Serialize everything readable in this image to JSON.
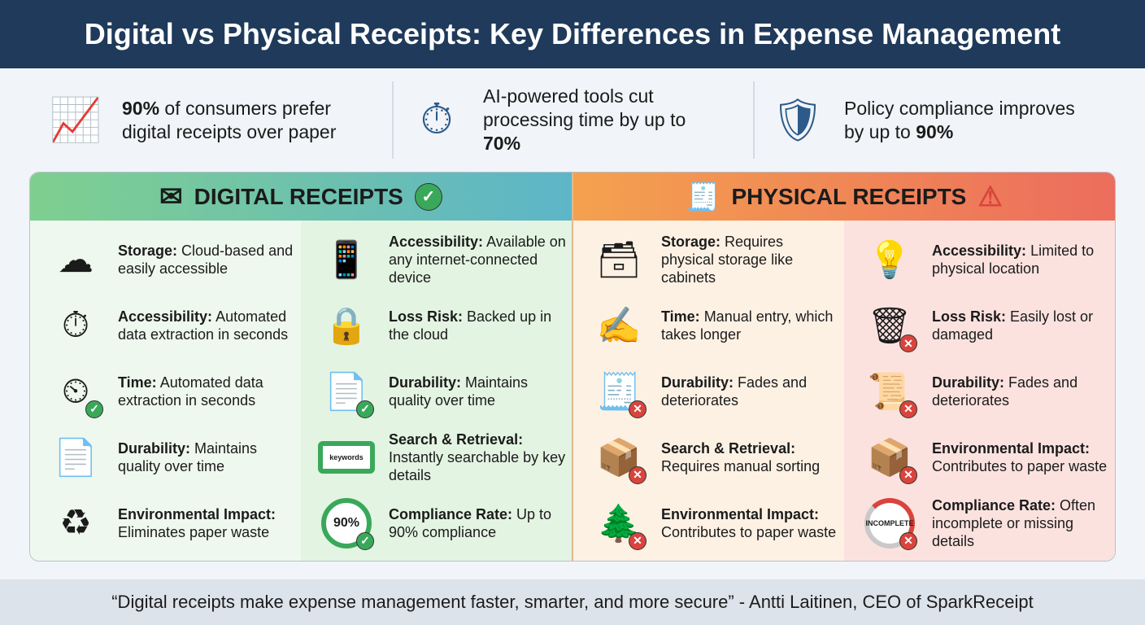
{
  "title": "Digital vs Physical Receipts: Key Differences in Expense Management",
  "stats": [
    {
      "icon": "growth-chart-icon",
      "pre": "",
      "bold": "90%",
      "post": " of consumers prefer digital receipts over paper"
    },
    {
      "icon": "stopwatch-lightning-icon",
      "pre": "AI-powered tools cut processing time by up to ",
      "bold": "70%",
      "post": ""
    },
    {
      "icon": "shield-check-icon",
      "pre": "Policy compliance improves by up to ",
      "bold": "90%",
      "post": ""
    }
  ],
  "digital": {
    "heading": "DIGITAL RECEIPTS",
    "color": "#3aa85a",
    "columns": [
      [
        {
          "icon": "cloud-download-icon",
          "label": "Storage:",
          "text": " Cloud-based and easily accessible"
        },
        {
          "icon": "stopwatch-gear-icon",
          "label": "Accessibility:",
          "text": " Automated data extraction in seconds"
        },
        {
          "icon": "timer-check-icon",
          "label": "Time:",
          "text": " Automated data extraction in seconds"
        },
        {
          "icon": "document-search-icon",
          "label": "Durability:",
          "text": " Maintains quality over time"
        },
        {
          "icon": "recycle-leaf-icon",
          "label": "Environmental Impact:",
          "text": " Eliminates paper waste"
        }
      ],
      [
        {
          "icon": "devices-wifi-icon",
          "label": "Accessibility:",
          "text": " Available on any internet-connected device"
        },
        {
          "icon": "cloud-lock-icon",
          "label": "Loss Risk:",
          "text": " Backed up in the cloud"
        },
        {
          "icon": "document-check-icon",
          "label": "Durability:",
          "text": " Maintains quality over time"
        },
        {
          "icon": "keywords-search-icon",
          "label": "Search & Retrieval:",
          "text": " Instantly searchable by key details",
          "icon_text": "keywords"
        },
        {
          "icon": "progress-ring-icon",
          "label": "Compliance Rate:",
          "text": " Up to 90% compliance",
          "icon_text": "90%"
        }
      ]
    ]
  },
  "physical": {
    "heading": "PHYSICAL RECEIPTS",
    "color": "#d9443c",
    "columns": [
      [
        {
          "icon": "file-box-icon",
          "label": "Storage:",
          "text": " Requires physical storage like cabinets"
        },
        {
          "icon": "hand-pen-icon",
          "label": "Time:",
          "text": " Manual entry, which takes longer"
        },
        {
          "icon": "paper-receipt-icon",
          "label": "Durability:",
          "text": " Fades and deteriorates"
        },
        {
          "icon": "person-box-icon",
          "label": "Search & Retrieval:",
          "text": " Requires manual sorting"
        },
        {
          "icon": "trees-paper-icon",
          "label": "Environmental Impact:",
          "text": " Contributes to paper waste"
        }
      ],
      [
        {
          "icon": "desk-lamp-question-icon",
          "label": "Accessibility:",
          "text": " Limited to physical location"
        },
        {
          "icon": "trash-can-icon",
          "label": "Loss Risk:",
          "text": " Easily lost or damaged"
        },
        {
          "icon": "damaged-paper-icon",
          "label": "Durability:",
          "text": " Fades and deteriorates"
        },
        {
          "icon": "paper-box-icon",
          "label": "Environmental Impact:",
          "text": " Contributes to paper waste"
        },
        {
          "icon": "incomplete-ring-icon",
          "label": "Compliance Rate:",
          "text": " Often incomplete or missing details",
          "icon_text": "INCOMPLETE"
        }
      ]
    ]
  },
  "footer": "“Digital receipts make expense management faster, smarter, and more secure” - Antti Laitinen, CEO of SparkReceipt"
}
